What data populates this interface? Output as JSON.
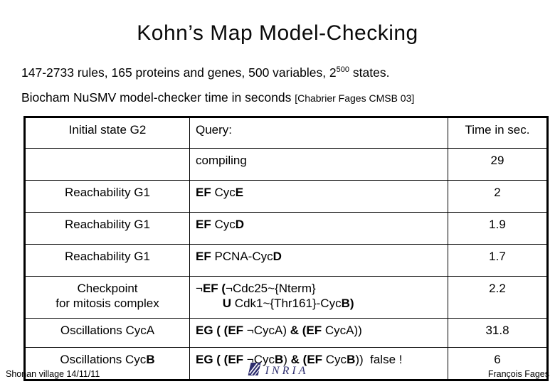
{
  "slide": {
    "title": "Kohn’s Map Model-Checking",
    "line1": {
      "prefix": "147-2733 rules, 165 proteins and genes, 500 variables, 2",
      "exponent": "500",
      "suffix": " states."
    },
    "line2": {
      "main": "Biocham NuSMV model-checker time in seconds ",
      "citation": "[Chabrier Fages CMSB 03]"
    }
  },
  "table": {
    "header": {
      "state": "Initial state G2",
      "query": "Query:",
      "time": "Time in sec."
    },
    "rows": [
      {
        "state": [],
        "query": [
          {
            "t": "compiling"
          }
        ],
        "time": "29"
      },
      {
        "state": [
          {
            "t": "Reachability G1"
          }
        ],
        "query": [
          {
            "t": "EF ",
            "b": true
          },
          {
            "t": "Cyc"
          },
          {
            "t": "E",
            "b": true
          }
        ],
        "time": "2"
      },
      {
        "state": [
          {
            "t": "Reachability G1"
          }
        ],
        "query": [
          {
            "t": "EF ",
            "b": true
          },
          {
            "t": "Cyc"
          },
          {
            "t": "D",
            "b": true
          }
        ],
        "time": "1.9"
      },
      {
        "state": [
          {
            "t": "Reachability G1"
          }
        ],
        "query": [
          {
            "t": "EF ",
            "b": true
          },
          {
            "t": "PCNA-Cyc"
          },
          {
            "t": "D",
            "b": true
          }
        ],
        "time": "1.7"
      },
      {
        "state": [
          {
            "t": "Checkpoint"
          },
          {
            "br": true
          },
          {
            "t": "for mitosis complex"
          }
        ],
        "query": [
          {
            "t": "¬"
          },
          {
            "t": "EF (",
            "b": true
          },
          {
            "t": "¬Cdc25~{Nterm}"
          },
          {
            "br": true
          },
          {
            "t": "        "
          },
          {
            "t": "U",
            "b": true
          },
          {
            "t": " Cdk1~{Thr161}-Cyc"
          },
          {
            "t": "B)",
            "b": true
          }
        ],
        "time": "2.2"
      },
      {
        "state": [
          {
            "t": "Oscillations CycA"
          }
        ],
        "query": [
          {
            "t": "EG ( (EF ",
            "b": true
          },
          {
            "t": "¬CycA) "
          },
          {
            "t": "& (EF ",
            "b": true
          },
          {
            "t": "CycA))"
          }
        ],
        "time": "31.8"
      },
      {
        "state": [
          {
            "t": "Oscillations Cyc"
          },
          {
            "t": "B",
            "b": true
          }
        ],
        "query": [
          {
            "t": "EG ( (EF ",
            "b": true
          },
          {
            "t": "¬Cyc"
          },
          {
            "t": "B",
            "b": true
          },
          {
            "t": ") "
          },
          {
            "t": "& (EF ",
            "b": true
          },
          {
            "t": "Cyc"
          },
          {
            "t": "B",
            "b": true
          },
          {
            "t": "))"
          },
          {
            "t": "  false !"
          }
        ],
        "time": "6"
      }
    ]
  },
  "footer": {
    "left": "Shonan village 14/11/11",
    "logo_text": "INRIA",
    "right": "François Fages"
  },
  "colors": {
    "text": "#000000",
    "logo_navy": "#2e2e6e",
    "background": "#ffffff"
  }
}
